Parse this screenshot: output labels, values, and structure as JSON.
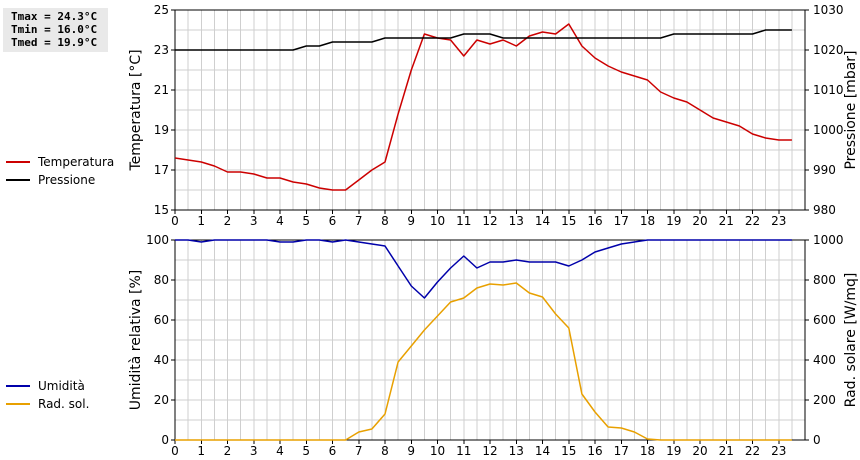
{
  "stats": {
    "tmax": "Tmax = 24.3°C",
    "tmin": "Tmin = 16.0°C",
    "tmed": "Tmed = 19.9°C"
  },
  "legend_top": [
    {
      "label": "Temperatura",
      "color": "#cc0000"
    },
    {
      "label": "Pressione",
      "color": "#000000"
    }
  ],
  "legend_bottom": [
    {
      "label": "Umidità",
      "color": "#0000aa"
    },
    {
      "label": "Rad. sol.",
      "color": "#e8a000"
    }
  ],
  "chart_data": [
    {
      "type": "line",
      "ylabel": "Temperatura [°C]",
      "y2label": "Pressione [mbar]",
      "ylim": [
        15,
        25
      ],
      "yticks": [
        15,
        17,
        19,
        21,
        23,
        25
      ],
      "y2lim": [
        980,
        1030
      ],
      "y2ticks": [
        980,
        990,
        1000,
        1010,
        1020,
        1030
      ],
      "xlim": [
        0,
        24
      ],
      "xticks": [
        0,
        1,
        2,
        3,
        4,
        5,
        6,
        7,
        8,
        9,
        10,
        11,
        12,
        13,
        14,
        15,
        16,
        17,
        18,
        19,
        20,
        21,
        22,
        23
      ],
      "grid": true,
      "series": [
        {
          "name": "Temperatura",
          "axis": "left",
          "color": "#cc0000",
          "x": [
            0,
            0.5,
            1,
            1.5,
            2,
            2.5,
            3,
            3.5,
            4,
            4.5,
            5,
            5.5,
            6,
            6.5,
            7,
            7.5,
            8,
            8.5,
            9,
            9.5,
            10,
            10.5,
            11,
            11.5,
            12,
            12.5,
            13,
            13.5,
            14,
            14.5,
            15,
            15.5,
            16,
            16.5,
            17,
            17.5,
            18,
            18.5,
            19,
            19.5,
            20,
            20.5,
            21,
            21.5,
            22,
            22.5,
            23,
            23.5
          ],
          "values": [
            17.6,
            17.5,
            17.4,
            17.2,
            16.9,
            16.9,
            16.8,
            16.6,
            16.6,
            16.4,
            16.3,
            16.1,
            16.0,
            16.0,
            16.5,
            17.0,
            17.4,
            19.8,
            22.0,
            23.8,
            23.6,
            23.5,
            22.7,
            23.5,
            23.3,
            23.5,
            23.2,
            23.7,
            23.9,
            23.8,
            24.3,
            23.2,
            22.6,
            22.2,
            21.9,
            21.7,
            21.5,
            20.9,
            20.6,
            20.4,
            20.0,
            19.6,
            19.4,
            19.2,
            18.8,
            18.6,
            18.5,
            18.5
          ]
        },
        {
          "name": "Pressione",
          "axis": "right",
          "color": "#000000",
          "x": [
            0,
            0.5,
            1,
            1.5,
            2,
            2.5,
            3,
            3.5,
            4,
            4.5,
            5,
            5.5,
            6,
            6.5,
            7,
            7.5,
            8,
            8.5,
            9,
            9.5,
            10,
            10.5,
            11,
            11.5,
            12,
            12.5,
            13,
            13.5,
            14,
            14.5,
            15,
            15.5,
            16,
            16.5,
            17,
            17.5,
            18,
            18.5,
            19,
            19.5,
            20,
            20.5,
            21,
            21.5,
            22,
            22.5,
            23,
            23.5
          ],
          "values": [
            1020,
            1020,
            1020,
            1020,
            1020,
            1020,
            1020,
            1020,
            1020,
            1020,
            1021,
            1021,
            1022,
            1022,
            1022,
            1022,
            1023,
            1023,
            1023,
            1023,
            1023,
            1023,
            1024,
            1024,
            1024,
            1023,
            1023,
            1023,
            1023,
            1023,
            1023,
            1023,
            1023,
            1023,
            1023,
            1023,
            1023,
            1023,
            1024,
            1024,
            1024,
            1024,
            1024,
            1024,
            1024,
            1025,
            1025,
            1025
          ]
        }
      ]
    },
    {
      "type": "line",
      "ylabel": "Umidità relativa [%]",
      "y2label": "Rad. solare [W/mq]",
      "ylim": [
        0,
        100
      ],
      "yticks": [
        0,
        20,
        40,
        60,
        80,
        100
      ],
      "y2lim": [
        0,
        1000
      ],
      "y2ticks": [
        0,
        200,
        400,
        600,
        800,
        1000
      ],
      "xlim": [
        0,
        24
      ],
      "xticks": [
        0,
        1,
        2,
        3,
        4,
        5,
        6,
        7,
        8,
        9,
        10,
        11,
        12,
        13,
        14,
        15,
        16,
        17,
        18,
        19,
        20,
        21,
        22,
        23
      ],
      "grid": true,
      "series": [
        {
          "name": "Umidità",
          "axis": "left",
          "color": "#0000aa",
          "x": [
            0,
            0.5,
            1,
            1.5,
            2,
            2.5,
            3,
            3.5,
            4,
            4.5,
            5,
            5.5,
            6,
            6.5,
            7,
            7.5,
            8,
            8.5,
            9,
            9.5,
            10,
            10.5,
            11,
            11.5,
            12,
            12.5,
            13,
            13.5,
            14,
            14.5,
            15,
            15.5,
            16,
            16.5,
            17,
            17.5,
            18,
            18.5,
            19,
            19.5,
            20,
            20.5,
            21,
            21.5,
            22,
            22.5,
            23,
            23.5
          ],
          "values": [
            100,
            100,
            99,
            100,
            100,
            100,
            100,
            100,
            99,
            99,
            100,
            100,
            99,
            100,
            99,
            98,
            97,
            87,
            77,
            71,
            79,
            86,
            92,
            86,
            89,
            89,
            90,
            89,
            89,
            89,
            87,
            90,
            94,
            96,
            98,
            99,
            100,
            100,
            100,
            100,
            100,
            100,
            100,
            100,
            100,
            100,
            100,
            100
          ]
        },
        {
          "name": "Rad. sol.",
          "axis": "right",
          "color": "#e8a000",
          "x": [
            0,
            0.5,
            1,
            1.5,
            2,
            2.5,
            3,
            3.5,
            4,
            4.5,
            5,
            5.5,
            6,
            6.5,
            7,
            7.5,
            8,
            8.5,
            9,
            9.5,
            10,
            10.5,
            11,
            11.5,
            12,
            12.5,
            13,
            13.5,
            14,
            14.5,
            15,
            15.5,
            16,
            16.5,
            17,
            17.5,
            18,
            18.5,
            19,
            19.5,
            20,
            20.5,
            21,
            21.5,
            22,
            22.5,
            23,
            23.5
          ],
          "values": [
            0,
            0,
            0,
            0,
            0,
            0,
            0,
            0,
            0,
            0,
            0,
            0,
            0,
            0,
            40,
            55,
            130,
            390,
            470,
            550,
            620,
            690,
            710,
            760,
            780,
            775,
            785,
            735,
            715,
            630,
            560,
            230,
            140,
            65,
            60,
            40,
            5,
            0,
            0,
            0,
            0,
            0,
            0,
            0,
            0,
            0,
            0,
            0
          ]
        }
      ]
    }
  ]
}
